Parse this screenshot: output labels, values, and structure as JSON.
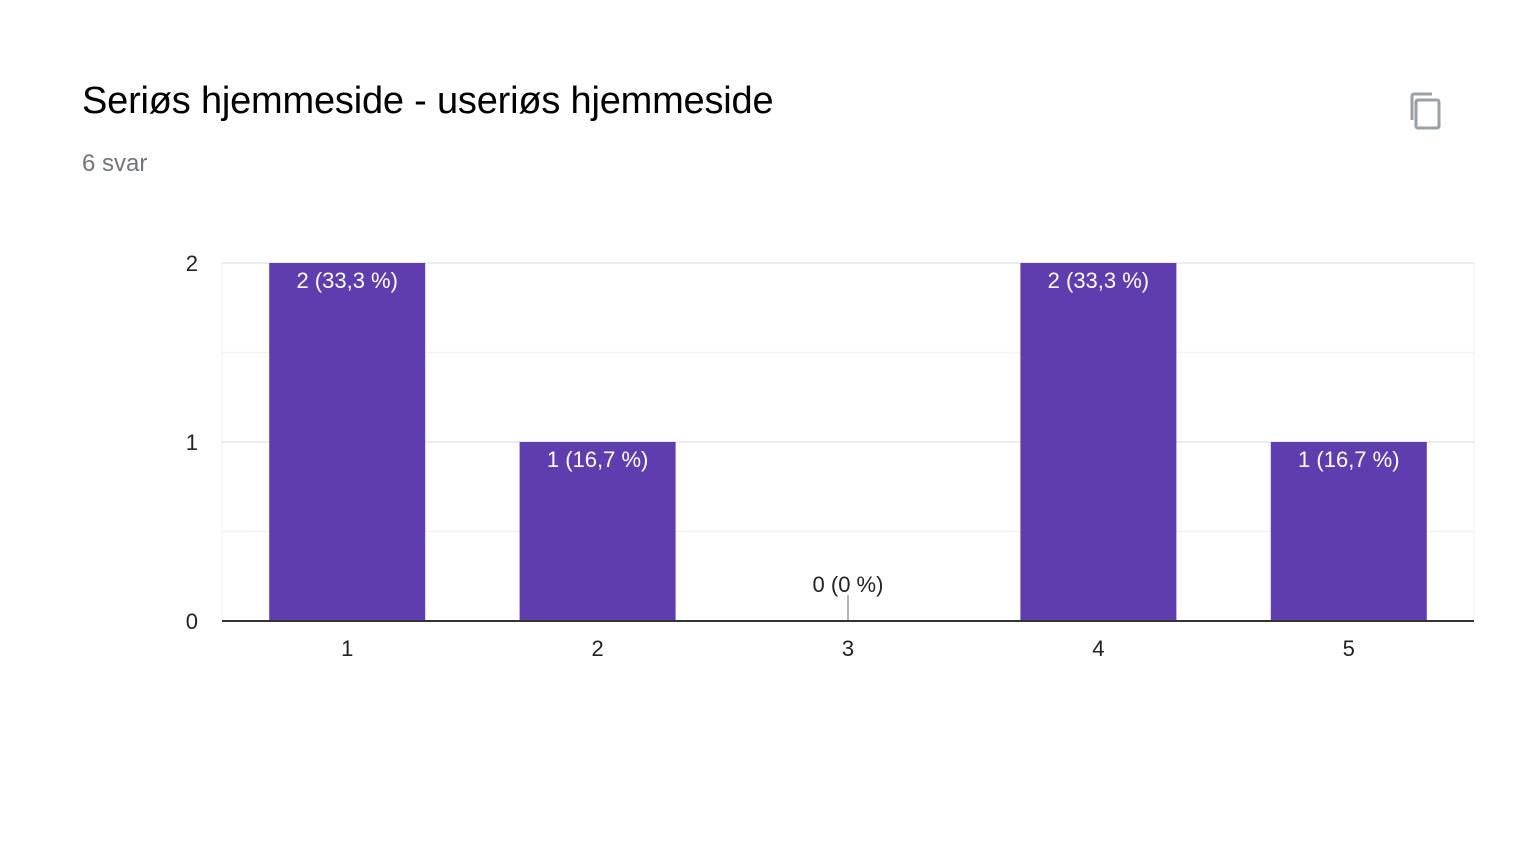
{
  "header": {
    "title": "Seriøs hjemmeside - useriøs hjemmeside",
    "responses": "6 svar",
    "copy_icon": "copy-icon"
  },
  "colors": {
    "bar": "#5e3eae",
    "grid": "#ebebeb",
    "axis": "#333333",
    "label_inside": "#ffffff",
    "label_outside": "#222222"
  },
  "chart_data": {
    "type": "bar",
    "categories": [
      "1",
      "2",
      "3",
      "4",
      "5"
    ],
    "values": [
      2,
      1,
      0,
      2,
      1
    ],
    "data_labels": [
      "2 (33,3 %)",
      "1 (16,7 %)",
      "0 (0 %)",
      "2 (33,3 %)",
      "1 (16,7 %)"
    ],
    "yticks": [
      "0",
      "1",
      "2"
    ],
    "ylim": [
      0,
      2
    ],
    "grid": true,
    "xlabel": "",
    "ylabel": ""
  }
}
